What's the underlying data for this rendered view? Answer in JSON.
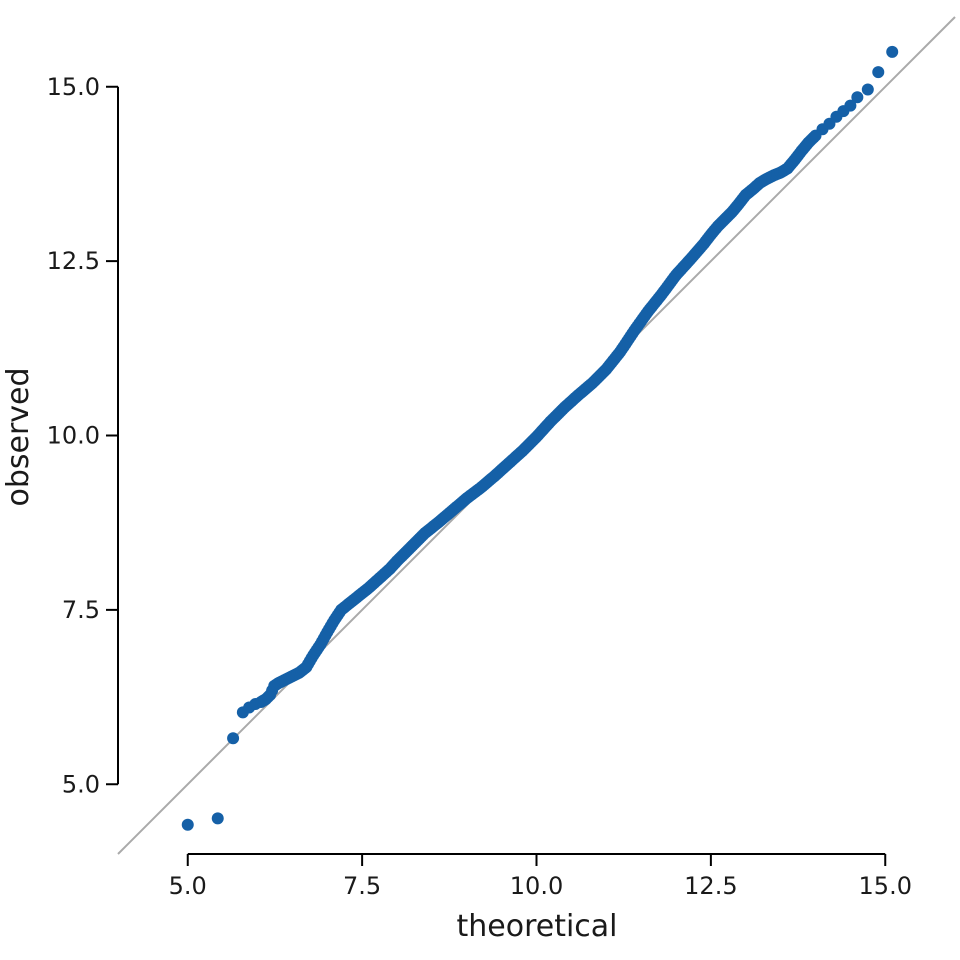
{
  "chart_data": {
    "type": "scatter",
    "title": "",
    "xlabel": "theoretical",
    "ylabel": "observed",
    "xlim": [
      4.0,
      16.0
    ],
    "ylim": [
      4.0,
      16.0
    ],
    "xticks": [
      5.0,
      7.5,
      10.0,
      12.5,
      15.0
    ],
    "yticks": [
      5.0,
      7.5,
      10.0,
      12.5,
      15.0
    ],
    "xtick_labels": [
      "5.0",
      "7.5",
      "10.0",
      "12.5",
      "15.0"
    ],
    "ytick_labels": [
      "5.0",
      "7.5",
      "10.0",
      "12.5",
      "15.0"
    ],
    "grid": false,
    "legend": "none",
    "reference_line": {
      "slope": 1,
      "intercept": 0,
      "color": "#aaaaaa"
    },
    "point_color": "#1560a7",
    "line_color": "#aaaaaa",
    "axis_color": "#000000",
    "series": [
      {
        "x": [
          5.0,
          5.43,
          5.65,
          5.79,
          5.88,
          5.97,
          6.05,
          6.12,
          6.18,
          6.24,
          6.3,
          6.4,
          6.5,
          6.6,
          6.7,
          6.8,
          6.9,
          7.0,
          7.1,
          7.2,
          7.3,
          7.4,
          7.5,
          7.6,
          7.7,
          7.8,
          7.9,
          8.0,
          8.2,
          8.4,
          8.6,
          8.8,
          9.0,
          9.2,
          9.4,
          9.6,
          9.8,
          10.0,
          10.2,
          10.4,
          10.6,
          10.8,
          11.0,
          11.2,
          11.4,
          11.6,
          11.8,
          12.0,
          12.2,
          12.4,
          12.5,
          12.6,
          12.7,
          12.8,
          12.9,
          13.0,
          13.1,
          13.2,
          13.3,
          13.4,
          13.5,
          13.6,
          13.7,
          13.8,
          13.9,
          14.0,
          14.1,
          14.2,
          14.3,
          14.4,
          14.5,
          14.6,
          14.75,
          14.9,
          15.1
        ],
        "y": [
          4.42,
          4.51,
          5.66,
          6.03,
          6.1,
          6.15,
          6.18,
          6.22,
          6.28,
          6.41,
          6.45,
          6.5,
          6.55,
          6.6,
          6.68,
          6.85,
          7.0,
          7.18,
          7.35,
          7.5,
          7.58,
          7.66,
          7.74,
          7.82,
          7.91,
          8.0,
          8.09,
          8.2,
          8.4,
          8.6,
          8.76,
          8.93,
          9.1,
          9.25,
          9.42,
          9.6,
          9.78,
          9.98,
          10.2,
          10.4,
          10.58,
          10.75,
          10.95,
          11.2,
          11.5,
          11.78,
          12.03,
          12.3,
          12.52,
          12.75,
          12.88,
          13.0,
          13.1,
          13.2,
          13.32,
          13.45,
          13.53,
          13.62,
          13.68,
          13.73,
          13.77,
          13.83,
          13.95,
          14.08,
          14.2,
          14.3,
          14.39,
          14.47,
          14.57,
          14.65,
          14.73,
          14.85,
          14.96,
          15.21,
          15.5
        ]
      }
    ]
  }
}
